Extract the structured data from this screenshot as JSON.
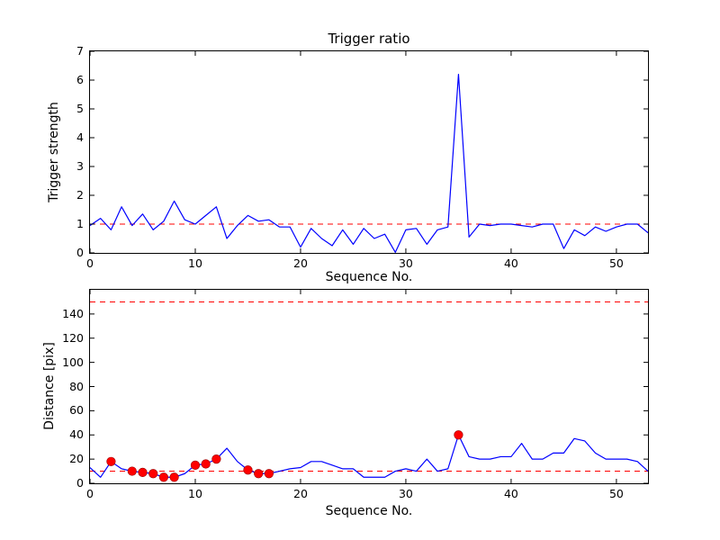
{
  "figure": {
    "background": "#ffffff",
    "charts": [
      {
        "id": "trigger-ratio",
        "type": "line",
        "title": "Trigger ratio",
        "xlabel": "Sequence No.",
        "ylabel": "Trigger strength",
        "xlim": [
          0,
          53
        ],
        "ylim": [
          0,
          7
        ],
        "xticks": [
          0,
          10,
          20,
          30,
          40,
          50
        ],
        "yticks": [
          0,
          1,
          2,
          3,
          4,
          5,
          6,
          7
        ],
        "grid": false,
        "line_color": "#0000ff",
        "threshold_color": "#ff0000",
        "thresholds": [
          1
        ],
        "x": [
          0,
          1,
          2,
          3,
          4,
          5,
          6,
          7,
          8,
          9,
          10,
          11,
          12,
          13,
          14,
          15,
          16,
          17,
          18,
          19,
          20,
          21,
          22,
          23,
          24,
          25,
          26,
          27,
          28,
          29,
          30,
          31,
          32,
          33,
          34,
          35,
          36,
          37,
          38,
          39,
          40,
          41,
          42,
          43,
          44,
          45,
          46,
          47,
          48,
          49,
          50,
          51,
          52,
          53
        ],
        "y": [
          0.95,
          1.2,
          0.8,
          1.6,
          0.95,
          1.35,
          0.8,
          1.1,
          1.8,
          1.15,
          1.0,
          1.3,
          1.6,
          0.5,
          0.95,
          1.3,
          1.1,
          1.15,
          0.9,
          0.9,
          0.2,
          0.85,
          0.5,
          0.25,
          0.8,
          0.3,
          0.85,
          0.5,
          0.65,
          0.02,
          0.8,
          0.85,
          0.3,
          0.8,
          0.9,
          6.2,
          0.55,
          1.0,
          0.95,
          1.0,
          1.0,
          0.95,
          0.9,
          1.0,
          1.0,
          0.15,
          0.8,
          0.6,
          0.9,
          0.75,
          0.9,
          1.0,
          1.0,
          0.7
        ]
      },
      {
        "id": "distance",
        "type": "line",
        "title": "",
        "xlabel": "Sequence No.",
        "ylabel": "Distance [pix]",
        "xlim": [
          0,
          53
        ],
        "ylim": [
          0,
          160
        ],
        "xticks": [
          0,
          10,
          20,
          30,
          40,
          50
        ],
        "yticks": [
          0,
          20,
          40,
          60,
          80,
          100,
          120,
          140
        ],
        "grid": false,
        "line_color": "#0000ff",
        "threshold_color": "#ff0000",
        "thresholds": [
          10,
          150
        ],
        "x": [
          0,
          1,
          2,
          3,
          4,
          5,
          6,
          7,
          8,
          9,
          10,
          11,
          12,
          13,
          14,
          15,
          16,
          17,
          18,
          19,
          20,
          21,
          22,
          23,
          24,
          25,
          26,
          27,
          28,
          29,
          30,
          31,
          32,
          33,
          34,
          35,
          36,
          37,
          38,
          39,
          40,
          41,
          42,
          43,
          44,
          45,
          46,
          47,
          48,
          49,
          50,
          51,
          52,
          53
        ],
        "y": [
          13,
          5,
          18,
          12,
          10,
          9,
          8,
          5,
          5,
          8,
          15,
          16,
          20,
          29,
          18,
          11,
          8,
          8,
          10,
          12,
          13,
          18,
          18,
          15,
          12,
          12,
          5,
          5,
          5,
          10,
          12,
          10,
          20,
          10,
          12,
          40,
          22,
          20,
          20,
          22,
          22,
          33,
          20,
          20,
          25,
          25,
          37,
          35,
          25,
          20,
          20,
          20,
          18,
          10
        ],
        "scatter": {
          "marker": "circle",
          "color": "#ff0000",
          "x": [
            2,
            4,
            5,
            6,
            7,
            8,
            10,
            11,
            12,
            15,
            16,
            17,
            35
          ],
          "y": [
            18,
            10,
            9,
            8,
            5,
            5,
            15,
            16,
            20,
            11,
            8,
            8,
            40
          ]
        }
      }
    ]
  }
}
